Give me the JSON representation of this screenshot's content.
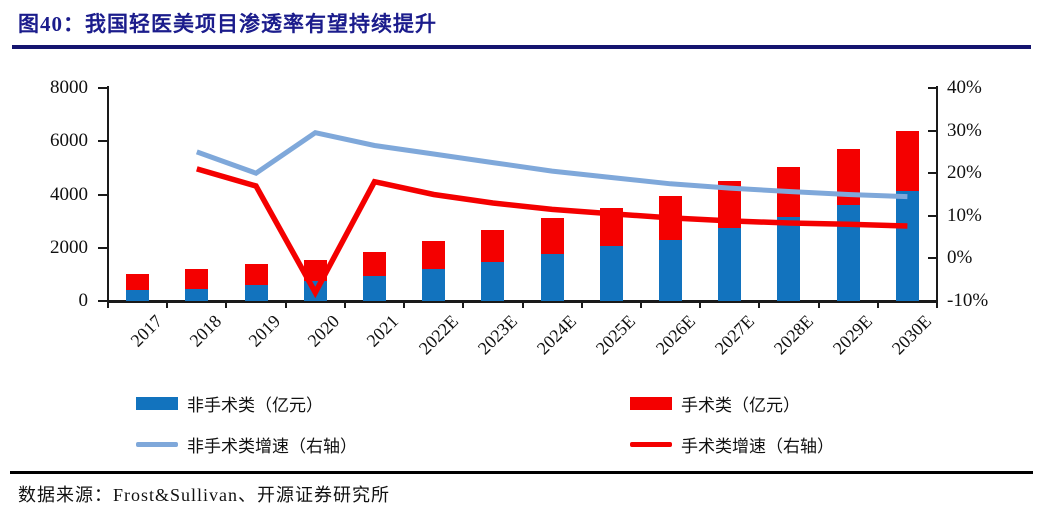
{
  "figure": {
    "title": "图40：我国轻医美项目渗透率有望持续提升",
    "source": "数据来源：Frost&Sullivan、开源证券研究所"
  },
  "colors": {
    "title_navy": "#1b1c8c",
    "bar_blue": "#1273be",
    "bar_red": "#f40000",
    "line_lightblue": "#7fa8da",
    "line_red": "#f40000",
    "axis_black": "#1a1a1a"
  },
  "chart_data": {
    "type": "bar",
    "subtype": "stacked bars (left axis) with growth lines (right axis)",
    "categories": [
      "2017",
      "2018",
      "2019",
      "2020",
      "2021",
      "2022E",
      "2023E",
      "2024E",
      "2025E",
      "2026E",
      "2027E",
      "2028E",
      "2029E",
      "2030E"
    ],
    "series": [
      {
        "name": "非手术类（亿元）",
        "kind": "bar",
        "axis": "left",
        "color": "#1273be",
        "values": [
          400,
          450,
          600,
          750,
          950,
          1200,
          1450,
          1750,
          2050,
          2300,
          2750,
          3150,
          3600,
          4150
        ]
      },
      {
        "name": "手术类（亿元）",
        "kind": "bar-stacked",
        "axis": "left",
        "color": "#f40000",
        "values": [
          600,
          750,
          800,
          800,
          900,
          1050,
          1200,
          1350,
          1450,
          1650,
          1750,
          1900,
          2100,
          2250
        ]
      },
      {
        "name": "非手术类增速（右轴）",
        "kind": "line",
        "axis": "right",
        "color": "#7fa8da",
        "values": [
          null,
          25,
          20,
          29.5,
          26.5,
          24.5,
          22.5,
          20.5,
          19,
          17.5,
          16.5,
          15.7,
          15,
          14.5
        ]
      },
      {
        "name": "手术类增速（右轴）",
        "kind": "line",
        "axis": "right",
        "color": "#f40000",
        "values": [
          null,
          21,
          17,
          -8,
          18,
          15,
          13,
          11.5,
          10.5,
          9.5,
          8.8,
          8.3,
          8,
          7.6
        ]
      }
    ],
    "left_axis": {
      "min": 0,
      "max": 8000,
      "tick_values": [
        0,
        2000,
        4000,
        6000,
        8000
      ],
      "tick_labels": [
        "0",
        "2000",
        "4000",
        "6000",
        "8000"
      ]
    },
    "right_axis": {
      "min": -10,
      "max": 40,
      "tick_values": [
        -10,
        0,
        10,
        20,
        30,
        40
      ],
      "tick_labels": [
        "-10%",
        "0%",
        "10%",
        "20%",
        "30%",
        "40%"
      ]
    },
    "grid": false,
    "legend_position": "bottom"
  }
}
